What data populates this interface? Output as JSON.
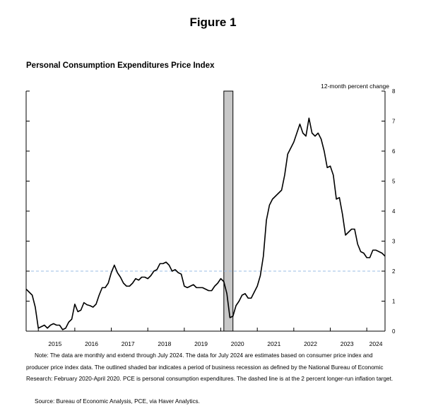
{
  "figure_title": "Figure 1",
  "chart_title": "Personal Consumption Expenditures Price Index",
  "note": "Note: The data are monthly and extend through July 2024. The data for July 2024 are estimates based on consumer price index and producer price index data. The outlined shaded bar indicates a period of business recession as defined by the National Bureau of Economic Research: February 2020-April 2020. PCE is personal consumption expenditures. The dashed line is at the 2 percent longer-run inflation target.",
  "source": "Source: Bureau of Economic Analysis, PCE, via Haver Analytics.",
  "chart_data": {
    "type": "line",
    "ylabel": "12-month percent change",
    "ylim": [
      0,
      8
    ],
    "yticks": [
      "0",
      "1",
      "2",
      "3",
      "4",
      "5",
      "6",
      "7",
      "8"
    ],
    "x_start": "2014-09",
    "x_end": "2024-07",
    "xtick_labels": [
      "2015",
      "2016",
      "2017",
      "2018",
      "2019",
      "2020",
      "2021",
      "2022",
      "2023",
      "2024"
    ],
    "target_line": 2,
    "recession": {
      "start": "2020-02",
      "end": "2020-04"
    },
    "series": [
      {
        "color": "#000000",
        "x": [
          "2014-09",
          "2014-10",
          "2014-11",
          "2014-12",
          "2015-01",
          "2015-02",
          "2015-03",
          "2015-04",
          "2015-05",
          "2015-06",
          "2015-07",
          "2015-08",
          "2015-09",
          "2015-10",
          "2015-11",
          "2015-12",
          "2016-01",
          "2016-02",
          "2016-03",
          "2016-04",
          "2016-05",
          "2016-06",
          "2016-07",
          "2016-08",
          "2016-09",
          "2016-10",
          "2016-11",
          "2016-12",
          "2017-01",
          "2017-02",
          "2017-03",
          "2017-04",
          "2017-05",
          "2017-06",
          "2017-07",
          "2017-08",
          "2017-09",
          "2017-10",
          "2017-11",
          "2017-12",
          "2018-01",
          "2018-02",
          "2018-03",
          "2018-04",
          "2018-05",
          "2018-06",
          "2018-07",
          "2018-08",
          "2018-09",
          "2018-10",
          "2018-11",
          "2018-12",
          "2019-01",
          "2019-02",
          "2019-03",
          "2019-04",
          "2019-05",
          "2019-06",
          "2019-07",
          "2019-08",
          "2019-09",
          "2019-10",
          "2019-11",
          "2019-12",
          "2020-01",
          "2020-02",
          "2020-03",
          "2020-04",
          "2020-05",
          "2020-06",
          "2020-07",
          "2020-08",
          "2020-09",
          "2020-10",
          "2020-11",
          "2020-12",
          "2021-01",
          "2021-02",
          "2021-03",
          "2021-04",
          "2021-05",
          "2021-06",
          "2021-07",
          "2021-08",
          "2021-09",
          "2021-10",
          "2021-11",
          "2021-12",
          "2022-01",
          "2022-02",
          "2022-03",
          "2022-04",
          "2022-05",
          "2022-06",
          "2022-07",
          "2022-08",
          "2022-09",
          "2022-10",
          "2022-11",
          "2022-12",
          "2023-01",
          "2023-02",
          "2023-03",
          "2023-04",
          "2023-05",
          "2023-06",
          "2023-07",
          "2023-08",
          "2023-09",
          "2023-10",
          "2023-11",
          "2023-12",
          "2024-01",
          "2024-02",
          "2024-03",
          "2024-04",
          "2024-05",
          "2024-06",
          "2024-07"
        ],
        "y": [
          1.4,
          1.3,
          1.2,
          0.8,
          0.1,
          0.15,
          0.2,
          0.1,
          0.2,
          0.25,
          0.2,
          0.2,
          0.05,
          0.1,
          0.3,
          0.4,
          0.9,
          0.65,
          0.7,
          0.95,
          0.88,
          0.85,
          0.8,
          0.9,
          1.2,
          1.45,
          1.45,
          1.6,
          1.95,
          2.2,
          1.95,
          1.8,
          1.6,
          1.5,
          1.5,
          1.6,
          1.75,
          1.7,
          1.8,
          1.8,
          1.75,
          1.85,
          2.0,
          2.05,
          2.25,
          2.25,
          2.3,
          2.2,
          2.0,
          2.05,
          1.95,
          1.9,
          1.5,
          1.45,
          1.5,
          1.55,
          1.45,
          1.45,
          1.45,
          1.4,
          1.35,
          1.35,
          1.5,
          1.6,
          1.75,
          1.65,
          1.25,
          0.45,
          0.5,
          0.85,
          1.0,
          1.2,
          1.25,
          1.1,
          1.1,
          1.3,
          1.5,
          1.85,
          2.5,
          3.7,
          4.2,
          4.4,
          4.5,
          4.6,
          4.7,
          5.2,
          5.9,
          6.1,
          6.3,
          6.6,
          6.9,
          6.6,
          6.5,
          7.1,
          6.6,
          6.5,
          6.6,
          6.4,
          6.0,
          5.45,
          5.5,
          5.2,
          4.4,
          4.45,
          3.9,
          3.2,
          3.3,
          3.4,
          3.4,
          2.9,
          2.65,
          2.6,
          2.45,
          2.45,
          2.7,
          2.7,
          2.65,
          2.6,
          2.5
        ]
      }
    ]
  }
}
